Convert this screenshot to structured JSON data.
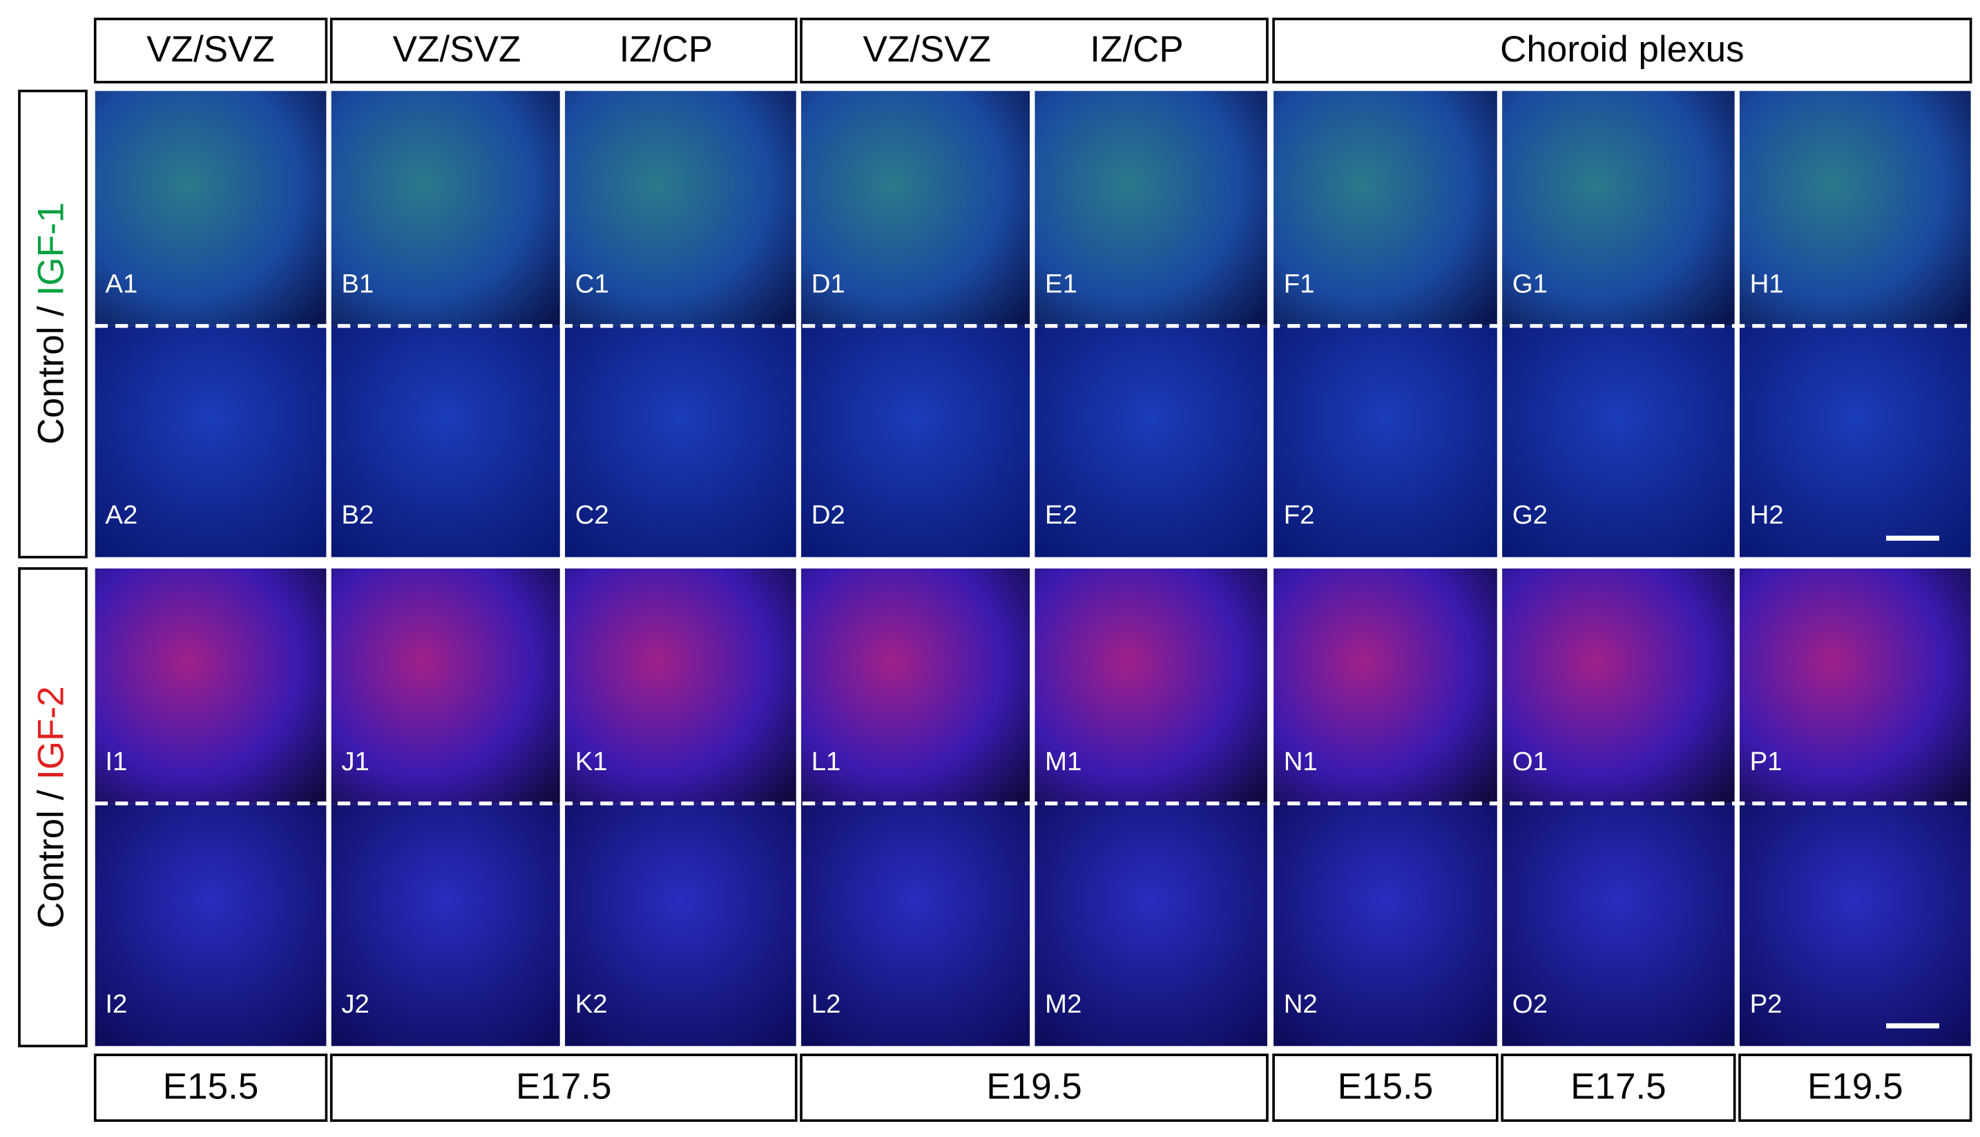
{
  "header": {
    "top_labels": [
      [
        "VZ/SVZ"
      ],
      [
        "VZ/SVZ",
        "IZ/CP"
      ],
      [
        "VZ/SVZ",
        "IZ/CP"
      ],
      [
        "Choroid plexus"
      ]
    ],
    "side_labels": [
      {
        "prefix": "Control / ",
        "marker": "IGF-1"
      },
      {
        "prefix": "Control / ",
        "marker": "IGF-2"
      }
    ],
    "bottom_labels": [
      "E15.5",
      "E17.5",
      "E19.5",
      "E15.5",
      "E17.5",
      "E19.5"
    ]
  },
  "panels": {
    "rows": [
      [
        "A1",
        "B1",
        "C1",
        "D1",
        "E1",
        "F1",
        "G1",
        "H1"
      ],
      [
        "A2",
        "B2",
        "C2",
        "D2",
        "E2",
        "F2",
        "G2",
        "H2"
      ],
      [
        "I1",
        "J1",
        "K1",
        "L1",
        "M1",
        "N1",
        "O1",
        "P1"
      ],
      [
        "I2",
        "J2",
        "K2",
        "L2",
        "M2",
        "N2",
        "O2",
        "P2"
      ]
    ]
  }
}
